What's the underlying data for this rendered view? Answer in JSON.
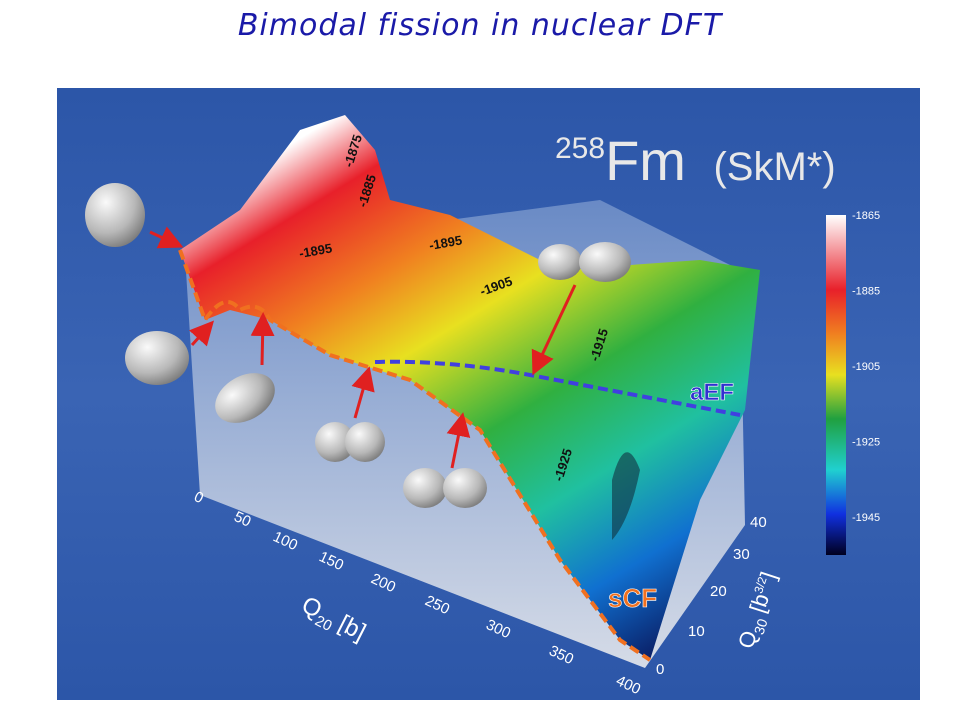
{
  "title": "Bimodal fission in nuclear DFT",
  "figure": {
    "nucleus": {
      "mass_number": "258",
      "symbol": "Fm",
      "force": "(SkM*)"
    },
    "colorbar_ticks": [
      -1865,
      -1885,
      -1905,
      -1925,
      -1945
    ],
    "contour_labels": [
      -1875,
      -1885,
      -1895,
      -1895,
      -1905,
      -1915,
      -1925
    ],
    "paths": {
      "asymmetric": "aEF",
      "symmetric": "sCF"
    },
    "q20_axis": {
      "symbol": "Q",
      "subscript": "20",
      "unit": "[b]",
      "ticks": [
        0,
        50,
        100,
        150,
        200,
        250,
        300,
        350,
        400
      ]
    },
    "q30_axis": {
      "symbol": "Q",
      "subscript": "30",
      "unit": "[b",
      "unit_power": "3/2",
      "unit_close": "]",
      "ticks": [
        0,
        10,
        20,
        30,
        40
      ]
    }
  }
}
